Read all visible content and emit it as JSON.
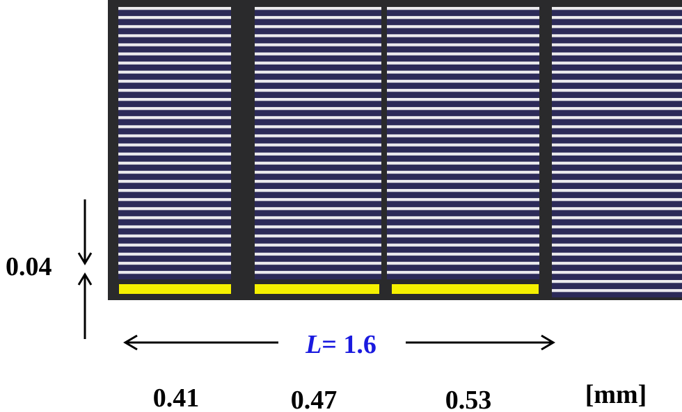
{
  "dimension_label": "0.04",
  "length_label": {
    "symbol": "L",
    "rest": "= 1.6"
  },
  "column_labels": [
    "0.41",
    "0.47",
    "0.53"
  ],
  "unit_label": "[mm]"
}
